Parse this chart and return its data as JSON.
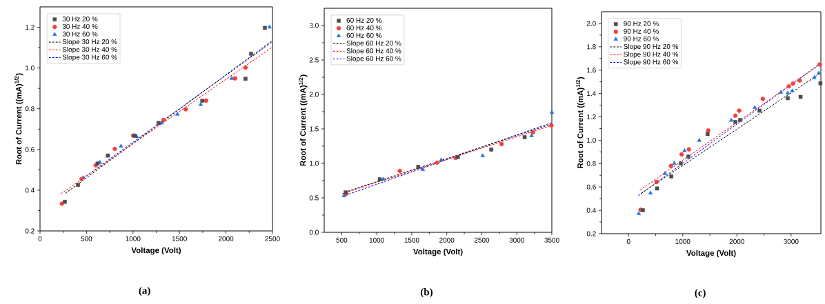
{
  "chart_data": [
    {
      "type": "scatter",
      "xlabel": "Voltage (Volt)",
      "ylabel": "Root of Current ((mA)$^{1/2}$)",
      "annotations": [
        "(a)"
      ],
      "xlim": [
        0,
        2500
      ],
      "ylim": [
        0.2,
        1.3
      ],
      "xticks": [
        0,
        500,
        1000,
        1500,
        2000,
        2500
      ],
      "yticks": [
        0.2,
        0.4,
        0.6,
        0.8,
        {
          "value": 1.0,
          "label": "1.0"
        },
        1.2
      ],
      "legend": "top left",
      "series": [
        {
          "name": "30 Hz 20 %",
          "color": "#4d4d4d",
          "marker": "square",
          "x": [
            267,
            408,
            619,
            730,
            1018,
            1275,
            1745,
            2210,
            2270,
            2418
          ],
          "values": [
            0.343,
            0.426,
            0.531,
            0.57,
            0.668,
            0.73,
            0.839,
            0.947,
            1.07,
            1.197
          ]
        },
        {
          "name": "30 Hz 40 %",
          "color": "#f04040",
          "marker": "circle",
          "x": [
            235,
            446,
            599,
            804,
            1002,
            1329,
            1567,
            1787,
            2097,
            2210
          ],
          "values": [
            0.334,
            0.455,
            0.522,
            0.603,
            0.668,
            0.745,
            0.797,
            0.84,
            0.949,
            1.002
          ]
        },
        {
          "name": "30 Hz 60 %",
          "color": "#2672e0",
          "marker": "triangle",
          "x": [
            463,
            644,
            871,
            1040,
            1307,
            1478,
            1728,
            2062,
            2468
          ],
          "values": [
            0.461,
            0.536,
            0.616,
            0.663,
            0.73,
            0.773,
            0.82,
            0.949,
            1.201
          ]
        },
        {
          "name": "Slope 30 Hz 20 %",
          "color": "#000000",
          "type": "line",
          "line_style": "dashed",
          "x": [
            272,
            2500
          ],
          "values": [
            0.384,
            1.135
          ]
        },
        {
          "name": "Slope 30 Hz 40 %",
          "color": "#ff0000",
          "type": "line",
          "line_style": "dashed",
          "x": [
            223,
            2500
          ],
          "values": [
            0.382,
            1.103
          ]
        },
        {
          "name": "Slope 30 Hz 60 %",
          "color": "#0000ff",
          "type": "line",
          "line_style": "dashed",
          "x": [
            433,
            2500
          ],
          "values": [
            0.449,
            1.129
          ]
        }
      ]
    },
    {
      "type": "scatter",
      "xlabel": "Voltage (Volt)",
      "ylabel": "Root of Current ((mA)$^{1/2}$)",
      "annotations": [
        "(b)"
      ],
      "xlim": [
        250,
        3500
      ],
      "ylim": [
        0,
        3.25
      ],
      "xticks": [
        500,
        1000,
        1500,
        2000,
        2500,
        3000,
        3500
      ],
      "yticks": [
        {
          "value": 0,
          "label": "0.0"
        },
        0.5,
        {
          "value": 1,
          "label": "1.0"
        },
        1.5,
        {
          "value": 2,
          "label": "2.0"
        },
        2.5,
        {
          "value": 3,
          "label": "3.0"
        }
      ],
      "legend": "top left",
      "series": [
        {
          "name": "60 Hz 20 %",
          "color": "#4d4d4d",
          "marker": "square",
          "x": [
            556,
            1043,
            1592,
            2158,
            2635,
            3112
          ],
          "values": [
            0.58,
            0.77,
            0.95,
            1.09,
            1.2,
            1.38
          ]
        },
        {
          "name": "60 Hz 40 %",
          "color": "#f04040",
          "marker": "circle",
          "x": [
            566,
            1329,
            1862,
            2125,
            2783,
            3230,
            3493
          ],
          "values": [
            0.56,
            0.89,
            1.01,
            1.08,
            1.28,
            1.45,
            1.55
          ]
        },
        {
          "name": "60 Hz 60 %",
          "color": "#2672e0",
          "marker": "triangle",
          "x": [
            533,
            1092,
            1658,
            1921,
            2513,
            3211,
            3500
          ],
          "values": [
            0.53,
            0.77,
            0.91,
            1.05,
            1.11,
            1.4,
            1.74
          ]
        },
        {
          "name": "Slope 60 Hz 20 %",
          "color": "#000000",
          "type": "line",
          "line_style": "dashed",
          "x": [
            539,
            3493
          ],
          "values": [
            0.58,
            1.57
          ]
        },
        {
          "name": "Slope 60 Hz 40 %",
          "color": "#ff0000",
          "type": "line",
          "line_style": "dashed",
          "x": [
            507,
            3493
          ],
          "values": [
            0.56,
            1.55
          ]
        },
        {
          "name": "Slope 60 Hz 60 %",
          "color": "#0000ff",
          "type": "line",
          "line_style": "dashed",
          "x": [
            507,
            3493
          ],
          "values": [
            0.52,
            1.59
          ]
        }
      ]
    },
    {
      "type": "scatter",
      "xlabel": "Voltage (Volt)",
      "ylabel": "Root of Current ((mA)$^{1/2}$)",
      "annotations": [
        "(c)"
      ],
      "xlim": [
        -500,
        3550
      ],
      "ylim": [
        0.2,
        2.1
      ],
      "xticks": [
        0,
        1000,
        2000,
        3000
      ],
      "yticks": [
        0.2,
        0.4,
        0.6,
        0.8,
        {
          "value": 1,
          "label": "1.0"
        },
        1.2,
        1.4,
        1.6,
        1.8,
        {
          "value": 2,
          "label": "2.0"
        }
      ],
      "legend": "top left",
      "series": [
        {
          "name": "90 Hz 20 %",
          "color": "#4d4d4d",
          "marker": "square",
          "x": [
            263,
            525,
            788,
            963,
            1104,
            1458,
            1971,
            2058,
            2417,
            2938,
            3175,
            3542
          ],
          "values": [
            0.401,
            0.587,
            0.69,
            0.802,
            0.86,
            1.053,
            1.157,
            1.173,
            1.253,
            1.36,
            1.371,
            1.487
          ]
        },
        {
          "name": "90 Hz 40 %",
          "color": "#f04040",
          "marker": "circle",
          "x": [
            221,
            517,
            783,
            979,
            1113,
            1471,
            1971,
            2042,
            2479,
            2958,
            3033,
            3158,
            3529
          ],
          "values": [
            0.405,
            0.642,
            0.78,
            0.878,
            0.921,
            1.083,
            1.21,
            1.253,
            1.354,
            1.462,
            1.485,
            1.511,
            1.648
          ]
        },
        {
          "name": "90 Hz 60 %",
          "color": "#2672e0",
          "marker": "triangle",
          "x": [
            188,
            404,
            671,
            842,
            1033,
            1304,
            1896,
            2329,
            2813,
            2938,
            3021,
            3429,
            3513
          ],
          "values": [
            0.371,
            0.548,
            0.715,
            0.802,
            0.91,
            0.998,
            1.171,
            1.279,
            1.409,
            1.403,
            1.422,
            1.536,
            1.574
          ]
        },
        {
          "name": "Slope 90 Hz 20 %",
          "color": "#000000",
          "type": "line",
          "line_style": "dashed",
          "x": [
            229,
            3542
          ],
          "values": [
            0.544,
            1.574
          ]
        },
        {
          "name": "Slope 90 Hz 40 %",
          "color": "#ff0000",
          "type": "line",
          "line_style": "dashed",
          "x": [
            208,
            3542
          ],
          "values": [
            0.572,
            1.652
          ]
        },
        {
          "name": "Slope 90 Hz 60 %",
          "color": "#0000ff",
          "type": "line",
          "line_style": "dashed",
          "x": [
            179,
            3542
          ],
          "values": [
            0.525,
            1.658
          ]
        }
      ]
    }
  ]
}
